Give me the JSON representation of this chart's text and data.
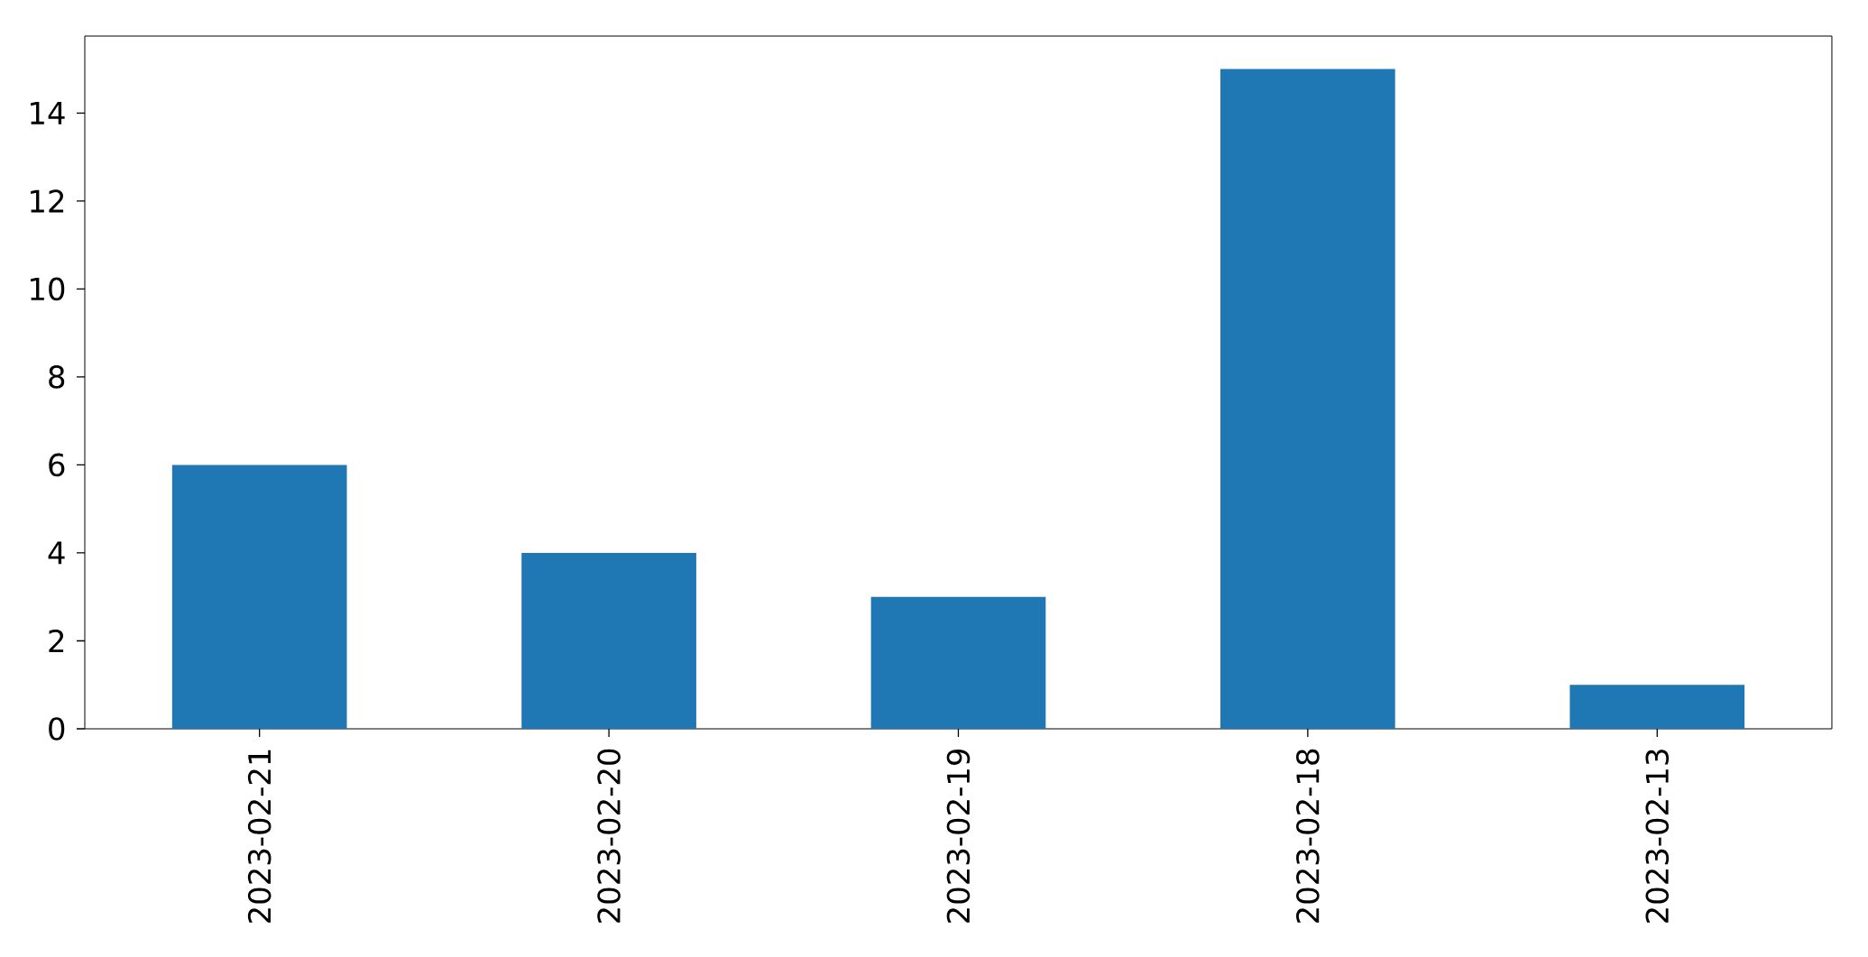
{
  "chart_data": {
    "type": "bar",
    "categories": [
      "2023-02-21",
      "2023-02-20",
      "2023-02-19",
      "2023-02-18",
      "2023-02-13"
    ],
    "values": [
      6,
      4,
      3,
      15,
      1
    ],
    "color": "#1f77b4",
    "ylim": [
      0,
      15.75
    ],
    "yticks": [
      0,
      2,
      4,
      6,
      8,
      10,
      12,
      14
    ]
  }
}
